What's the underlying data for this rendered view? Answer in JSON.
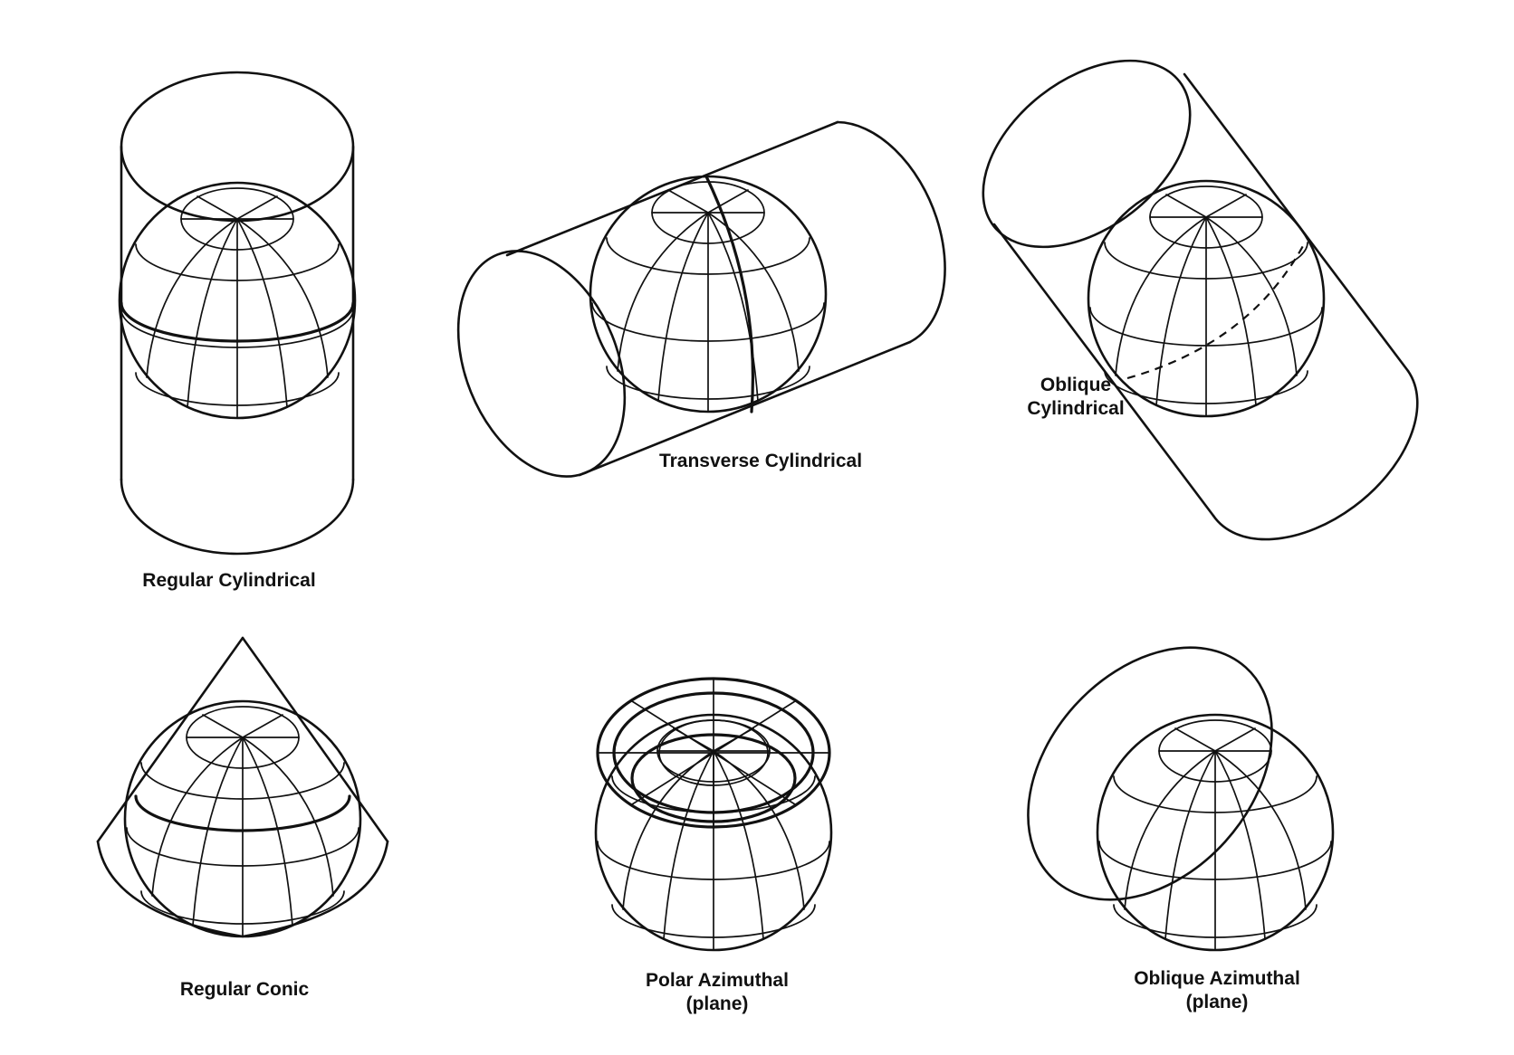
{
  "labels": {
    "regular_cylindrical": "Regular  Cylindrical",
    "transverse_cylindrical": "Transverse  Cylindrical",
    "oblique_cylindrical_line1": "Oblique",
    "oblique_cylindrical_line2": "Cylindrical",
    "regular_conic": "Regular  Conic",
    "polar_azimuthal_line1": "Polar  Azimuthal",
    "polar_azimuthal_line2": "(plane)",
    "oblique_azimuthal_line1": "Oblique  Azimuthal",
    "oblique_azimuthal_line2": "(plane)"
  },
  "colors": {
    "ink": "#111111",
    "background": "#ffffff"
  }
}
